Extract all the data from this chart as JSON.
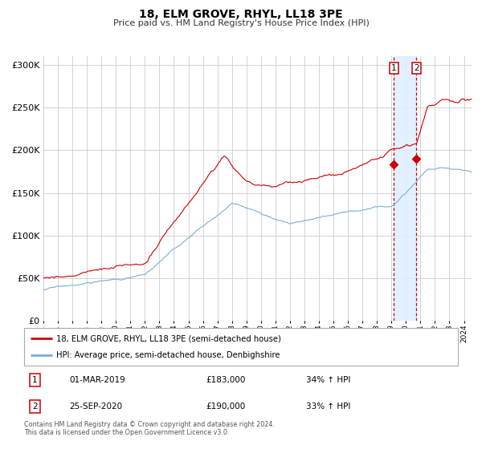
{
  "title": "18, ELM GROVE, RHYL, LL18 3PE",
  "subtitle": "Price paid vs. HM Land Registry's House Price Index (HPI)",
  "ylim": [
    0,
    310000
  ],
  "xlim_start": 1995.0,
  "xlim_end": 2024.58,
  "red_line_color": "#cc0000",
  "blue_line_color": "#7aadd4",
  "sale1_date": 2019.17,
  "sale1_price": 183000,
  "sale2_date": 2020.73,
  "sale2_price": 190000,
  "legend_red_label": "18, ELM GROVE, RHYL, LL18 3PE (semi-detached house)",
  "legend_blue_label": "HPI: Average price, semi-detached house, Denbighshire",
  "annotation1_date": "01-MAR-2019",
  "annotation1_price": "£183,000",
  "annotation1_hpi": "34% ↑ HPI",
  "annotation2_date": "25-SEP-2020",
  "annotation2_price": "£190,000",
  "annotation2_hpi": "33% ↑ HPI",
  "footer": "Contains HM Land Registry data © Crown copyright and database right 2024.\nThis data is licensed under the Open Government Licence v3.0.",
  "grid_color": "#cccccc",
  "shaded_region_color": "#ddeeff"
}
